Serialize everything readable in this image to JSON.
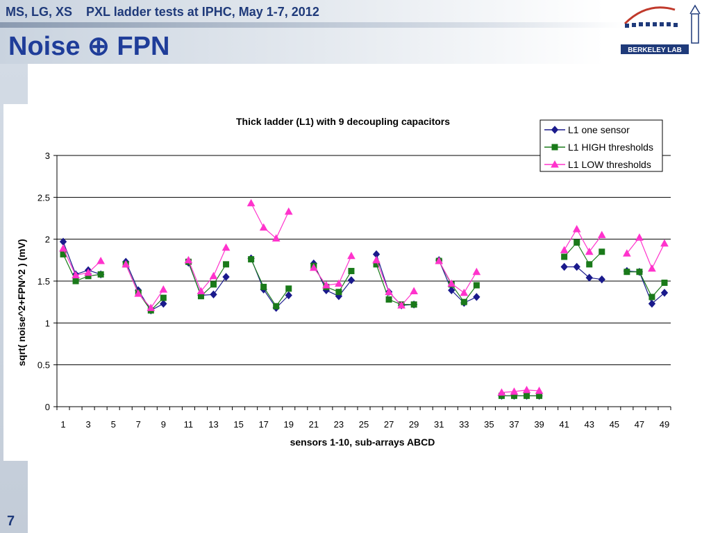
{
  "slide": {
    "header_text": "MS, LG, XS    PXL ladder tests at IPHC, May 1-7, 2012",
    "title": "Noise ⊕ FPN",
    "page_number": "7",
    "logo_text": "BERKELEY LAB",
    "colors": {
      "title_blue": "#1f3d99",
      "header_blue": "#1f3a7a",
      "logo_red": "#c0392b",
      "logo_blue": "#1f3a7a"
    }
  },
  "chart_data": {
    "type": "line",
    "title": "Thick ladder (L1) with 9 decoupling capacitors",
    "xlabel": "sensors 1-10, sub-arrays ABCD",
    "ylabel": "sqrt( noise^2+FPN^2 ) (mV)",
    "xlim": [
      1,
      49
    ],
    "ylim": [
      0,
      3
    ],
    "x_ticks": [
      1,
      3,
      5,
      7,
      9,
      11,
      13,
      15,
      17,
      19,
      21,
      23,
      25,
      27,
      29,
      31,
      33,
      35,
      37,
      39,
      41,
      43,
      45,
      47,
      49
    ],
    "y_ticks": [
      0,
      0.5,
      1,
      1.5,
      2,
      2.5,
      3
    ],
    "y_tick_labels": [
      "0",
      "0.5",
      "1",
      "1.5",
      "2",
      "2.5",
      "3"
    ],
    "grid": "horizontal",
    "legend_position": "top-right",
    "series": [
      {
        "name": "L1 one sensor",
        "color": "#1a1a8c",
        "marker": "diamond",
        "x": [
          1,
          2,
          3,
          4,
          6,
          7,
          8,
          9,
          11,
          12,
          13,
          14,
          16,
          17,
          18,
          19,
          21,
          22,
          23,
          24,
          26,
          27,
          28,
          29,
          31,
          32,
          33,
          34,
          36,
          37,
          38,
          39,
          41,
          42,
          43,
          44,
          46,
          47,
          48,
          49
        ],
        "y": [
          1.97,
          1.58,
          1.63,
          1.58,
          1.73,
          1.39,
          1.15,
          1.23,
          1.72,
          1.33,
          1.34,
          1.55,
          1.77,
          1.4,
          1.18,
          1.33,
          1.71,
          1.39,
          1.32,
          1.51,
          1.82,
          1.37,
          1.21,
          1.22,
          1.75,
          1.39,
          1.24,
          1.31,
          0.13,
          0.13,
          0.13,
          0.13,
          1.67,
          1.67,
          1.54,
          1.52,
          1.62,
          1.61,
          1.23,
          1.36
        ]
      },
      {
        "name": "L1 HIGH thresholds",
        "color": "#1a7a1a",
        "marker": "square",
        "x": [
          1,
          2,
          3,
          4,
          6,
          7,
          8,
          9,
          11,
          12,
          13,
          14,
          16,
          17,
          18,
          19,
          21,
          22,
          23,
          24,
          26,
          27,
          28,
          29,
          31,
          32,
          33,
          34,
          36,
          37,
          38,
          39,
          41,
          42,
          43,
          44,
          46,
          47,
          48,
          49
        ],
        "y": [
          1.82,
          1.5,
          1.56,
          1.58,
          1.7,
          1.36,
          1.15,
          1.3,
          1.73,
          1.32,
          1.46,
          1.7,
          1.76,
          1.43,
          1.2,
          1.41,
          1.68,
          1.43,
          1.37,
          1.62,
          1.7,
          1.28,
          1.22,
          1.22,
          1.74,
          1.46,
          1.25,
          1.45,
          0.13,
          0.13,
          0.13,
          0.13,
          1.79,
          1.96,
          1.7,
          1.85,
          1.61,
          1.61,
          1.31,
          1.48
        ]
      },
      {
        "name": "L1 LOW thresholds",
        "color": "#ff33cc",
        "marker": "triangle",
        "x": [
          1,
          2,
          3,
          4,
          6,
          7,
          8,
          9,
          11,
          12,
          13,
          14,
          16,
          17,
          18,
          19,
          21,
          22,
          23,
          24,
          26,
          27,
          28,
          29,
          31,
          32,
          33,
          34,
          36,
          37,
          38,
          39,
          41,
          42,
          43,
          44,
          46,
          47,
          48,
          49
        ],
        "y": [
          1.89,
          1.57,
          1.6,
          1.74,
          1.7,
          1.35,
          1.18,
          1.4,
          1.75,
          1.38,
          1.56,
          1.9,
          2.43,
          2.14,
          2.01,
          2.33,
          1.66,
          1.45,
          1.47,
          1.8,
          1.75,
          1.37,
          1.21,
          1.38,
          1.74,
          1.47,
          1.36,
          1.61,
          0.17,
          0.18,
          0.2,
          0.19,
          1.87,
          2.12,
          1.85,
          2.05,
          1.83,
          2.02,
          1.65,
          1.95
        ]
      }
    ]
  }
}
